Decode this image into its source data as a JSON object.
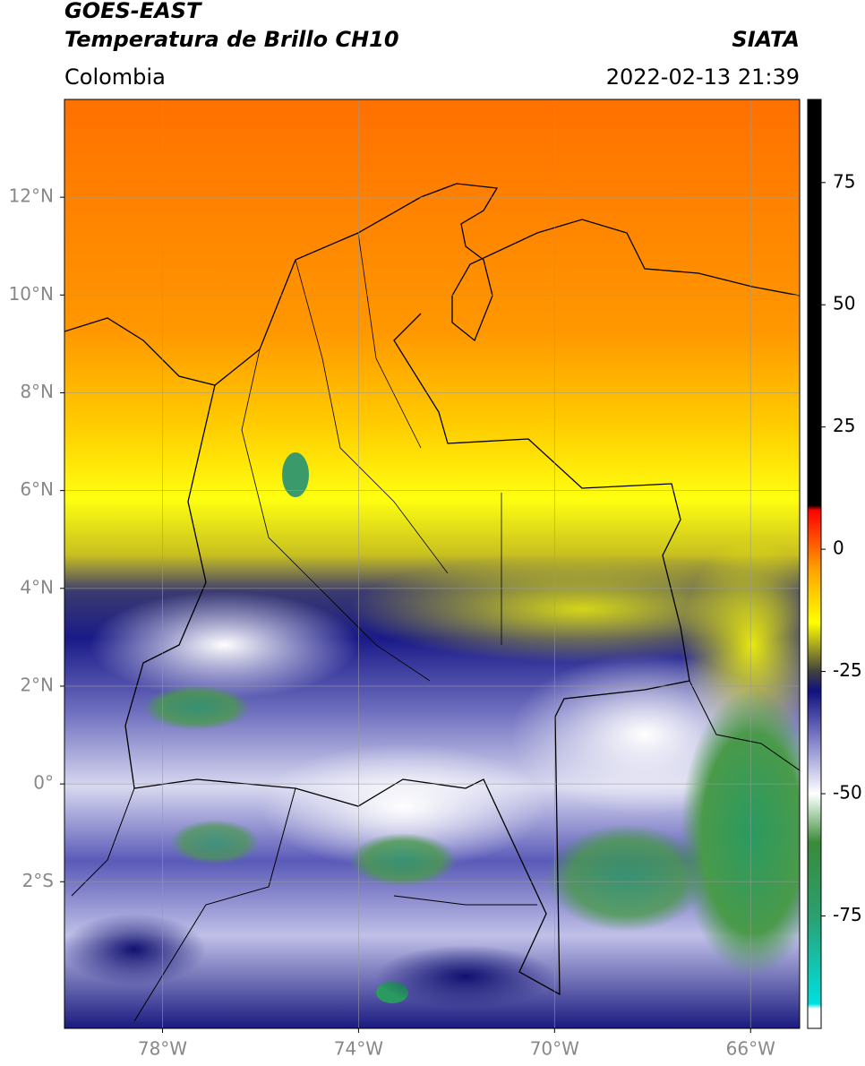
{
  "header": {
    "title": "GOES-EAST",
    "subtitle": "Temperatura de Brillo CH10",
    "source": "SIATA",
    "region": "Colombia",
    "datetime": "2022-02-13 21:39"
  },
  "map": {
    "lonlim": [
      -80,
      -65
    ],
    "latlim": [
      -5,
      14
    ],
    "grid": true,
    "lon_ticks": [
      {
        "value": -78,
        "label": "78°W"
      },
      {
        "value": -74,
        "label": "74°W"
      },
      {
        "value": -70,
        "label": "70°W"
      },
      {
        "value": -66,
        "label": "66°W"
      }
    ],
    "lat_ticks": [
      {
        "value": 12,
        "label": "12°N"
      },
      {
        "value": 10,
        "label": "10°N"
      },
      {
        "value": 8,
        "label": "8°N"
      },
      {
        "value": 6,
        "label": "6°N"
      },
      {
        "value": 4,
        "label": "4°N"
      },
      {
        "value": 2,
        "label": "2°N"
      },
      {
        "value": 0,
        "label": "0°"
      },
      {
        "value": -2,
        "label": "2°S"
      }
    ]
  },
  "colorbar": {
    "lim": [
      -98,
      92
    ],
    "ticks": [
      75,
      50,
      25,
      0,
      -25,
      -50,
      -75
    ],
    "stops": [
      {
        "value": -98,
        "color": "#ffffff"
      },
      {
        "value": -94,
        "color": "#ffffff"
      },
      {
        "value": -93,
        "color": "#00e0e0"
      },
      {
        "value": -75,
        "color": "#2aa070"
      },
      {
        "value": -60,
        "color": "#3a8a3a"
      },
      {
        "value": -52,
        "color": "#d8ecd8"
      },
      {
        "value": -50,
        "color": "#ffffff"
      },
      {
        "value": -40,
        "color": "#8c8cd0"
      },
      {
        "value": -29,
        "color": "#101080"
      },
      {
        "value": -25,
        "color": "#404040"
      },
      {
        "value": -20,
        "color": "#a0a020"
      },
      {
        "value": -15,
        "color": "#ffff00"
      },
      {
        "value": -4,
        "color": "#ffa000"
      },
      {
        "value": 8,
        "color": "#ff0000"
      },
      {
        "value": 9,
        "color": "#000000"
      },
      {
        "value": 92,
        "color": "#000000"
      }
    ]
  }
}
